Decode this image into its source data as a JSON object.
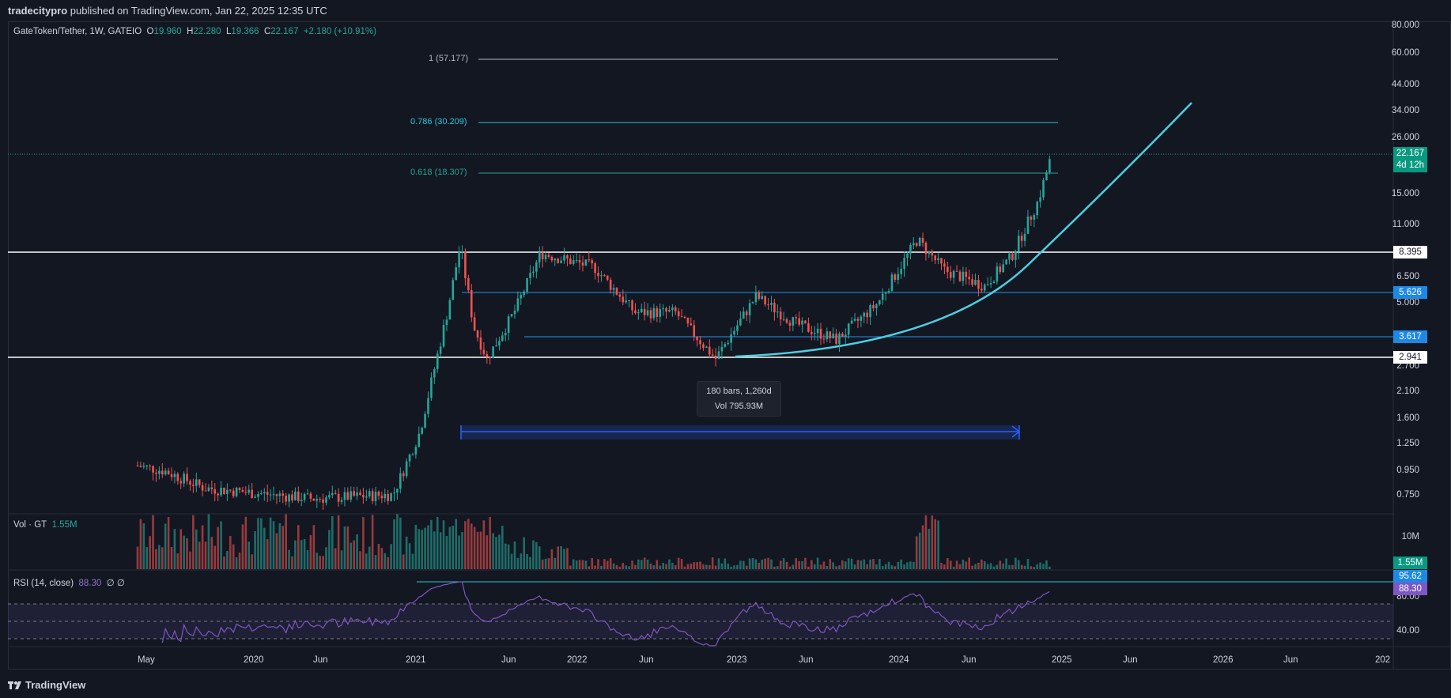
{
  "header": {
    "publisher": "tradecitypro",
    "published_text": "published on TradingView.com, Jan 22, 2025 12:35 UTC"
  },
  "legend": {
    "symbol": "GateToken/Tether, 1W, GATEIO",
    "o_label": "O",
    "o": "19.960",
    "h_label": "H",
    "h": "22.280",
    "l_label": "L",
    "l": "19.366",
    "c_label": "C",
    "c": "22.167",
    "change": "+2.180 (+10.91%)"
  },
  "volume": {
    "label": "Vol · GT",
    "value": "1.55M",
    "axis_label": "10M",
    "tag": "1.55M"
  },
  "rsi": {
    "label": "RSI (14, close)",
    "value": "88.30",
    "extra": "∅ ∅",
    "axis_labels": [
      "80.00",
      "40.00"
    ],
    "tag_upper": "95.62",
    "tag_value": "88.30"
  },
  "price_axis": [
    "80.000",
    "60.000",
    "44.000",
    "34.000",
    "26.000",
    "15.000",
    "11.000",
    "6.500",
    "5.000",
    "2.700",
    "2.100",
    "1.600",
    "1.250",
    "0.950",
    "0.750"
  ],
  "price_tags": {
    "current": "22.167",
    "countdown": "4d 12h",
    "level_high": "8.395",
    "level_mid": "5.626",
    "level_low1": "3.617",
    "level_low2": "2.941"
  },
  "fib_levels": [
    {
      "label": "1 (57.177)",
      "color": "#b2b5be"
    },
    {
      "label": "0.786 (30.209)",
      "color": "#26c6da"
    },
    {
      "label": "0.618 (18.307)",
      "color": "#26a69a"
    }
  ],
  "measure_tooltip": {
    "line1": "180 bars, 1,260d",
    "line2": "Vol 795.93M"
  },
  "time_axis": [
    "May",
    "2020",
    "Jun",
    "2021",
    "Jun",
    "2022",
    "Jun",
    "2023",
    "Jun",
    "2024",
    "Jun",
    "2025",
    "Jun",
    "2026",
    "Jun",
    "202"
  ],
  "brand": "TradingView",
  "colors": {
    "up": "#26a69a",
    "down": "#ef5350",
    "rsi": "#7e57c2",
    "curve": "#4dd0e1",
    "measure": "#2962ff"
  },
  "chart_data": {
    "type": "candlestick",
    "symbol": "GateToken/Tether",
    "interval": "1W",
    "exchange": "GATEIO",
    "y_scale": "log",
    "ylim": [
      0.65,
      85
    ],
    "x_range": [
      "2019-04",
      "2026-10"
    ],
    "last_bar": {
      "open": 19.96,
      "high": 22.28,
      "low": 19.366,
      "close": 22.167
    },
    "horizontal_levels": [
      8.395,
      5.626,
      3.617,
      2.941
    ],
    "fib_levels": [
      {
        "ratio": 1,
        "price": 57.177
      },
      {
        "ratio": 0.786,
        "price": 30.209
      },
      {
        "ratio": 0.618,
        "price": 18.307
      }
    ],
    "price_path": [
      [
        "2019-05",
        1.0
      ],
      [
        "2019-07",
        0.95
      ],
      [
        "2019-10",
        0.8
      ],
      [
        "2020-06",
        0.72
      ],
      [
        "2020-12",
        0.75
      ],
      [
        "2021-02",
        1.4
      ],
      [
        "2021-04",
        4.5
      ],
      [
        "2021-05",
        9.0
      ],
      [
        "2021-06",
        4.0
      ],
      [
        "2021-07",
        2.9
      ],
      [
        "2021-09",
        4.6
      ],
      [
        "2021-11",
        8.3
      ],
      [
        "2022-03",
        7.2
      ],
      [
        "2022-06",
        4.6
      ],
      [
        "2022-09",
        4.6
      ],
      [
        "2022-12",
        2.9
      ],
      [
        "2023-03",
        5.4
      ],
      [
        "2023-06",
        4.1
      ],
      [
        "2023-09",
        3.5
      ],
      [
        "2023-12",
        5.0
      ],
      [
        "2024-03",
        9.5
      ],
      [
        "2024-05",
        7.0
      ],
      [
        "2024-08",
        6.0
      ],
      [
        "2024-10",
        8.0
      ],
      [
        "2024-12",
        14.0
      ],
      [
        "2025-01",
        22.167
      ]
    ],
    "volume_last": "1.55M",
    "rsi_last": 88.3,
    "rsi_bands": [
      70,
      50,
      30
    ]
  }
}
